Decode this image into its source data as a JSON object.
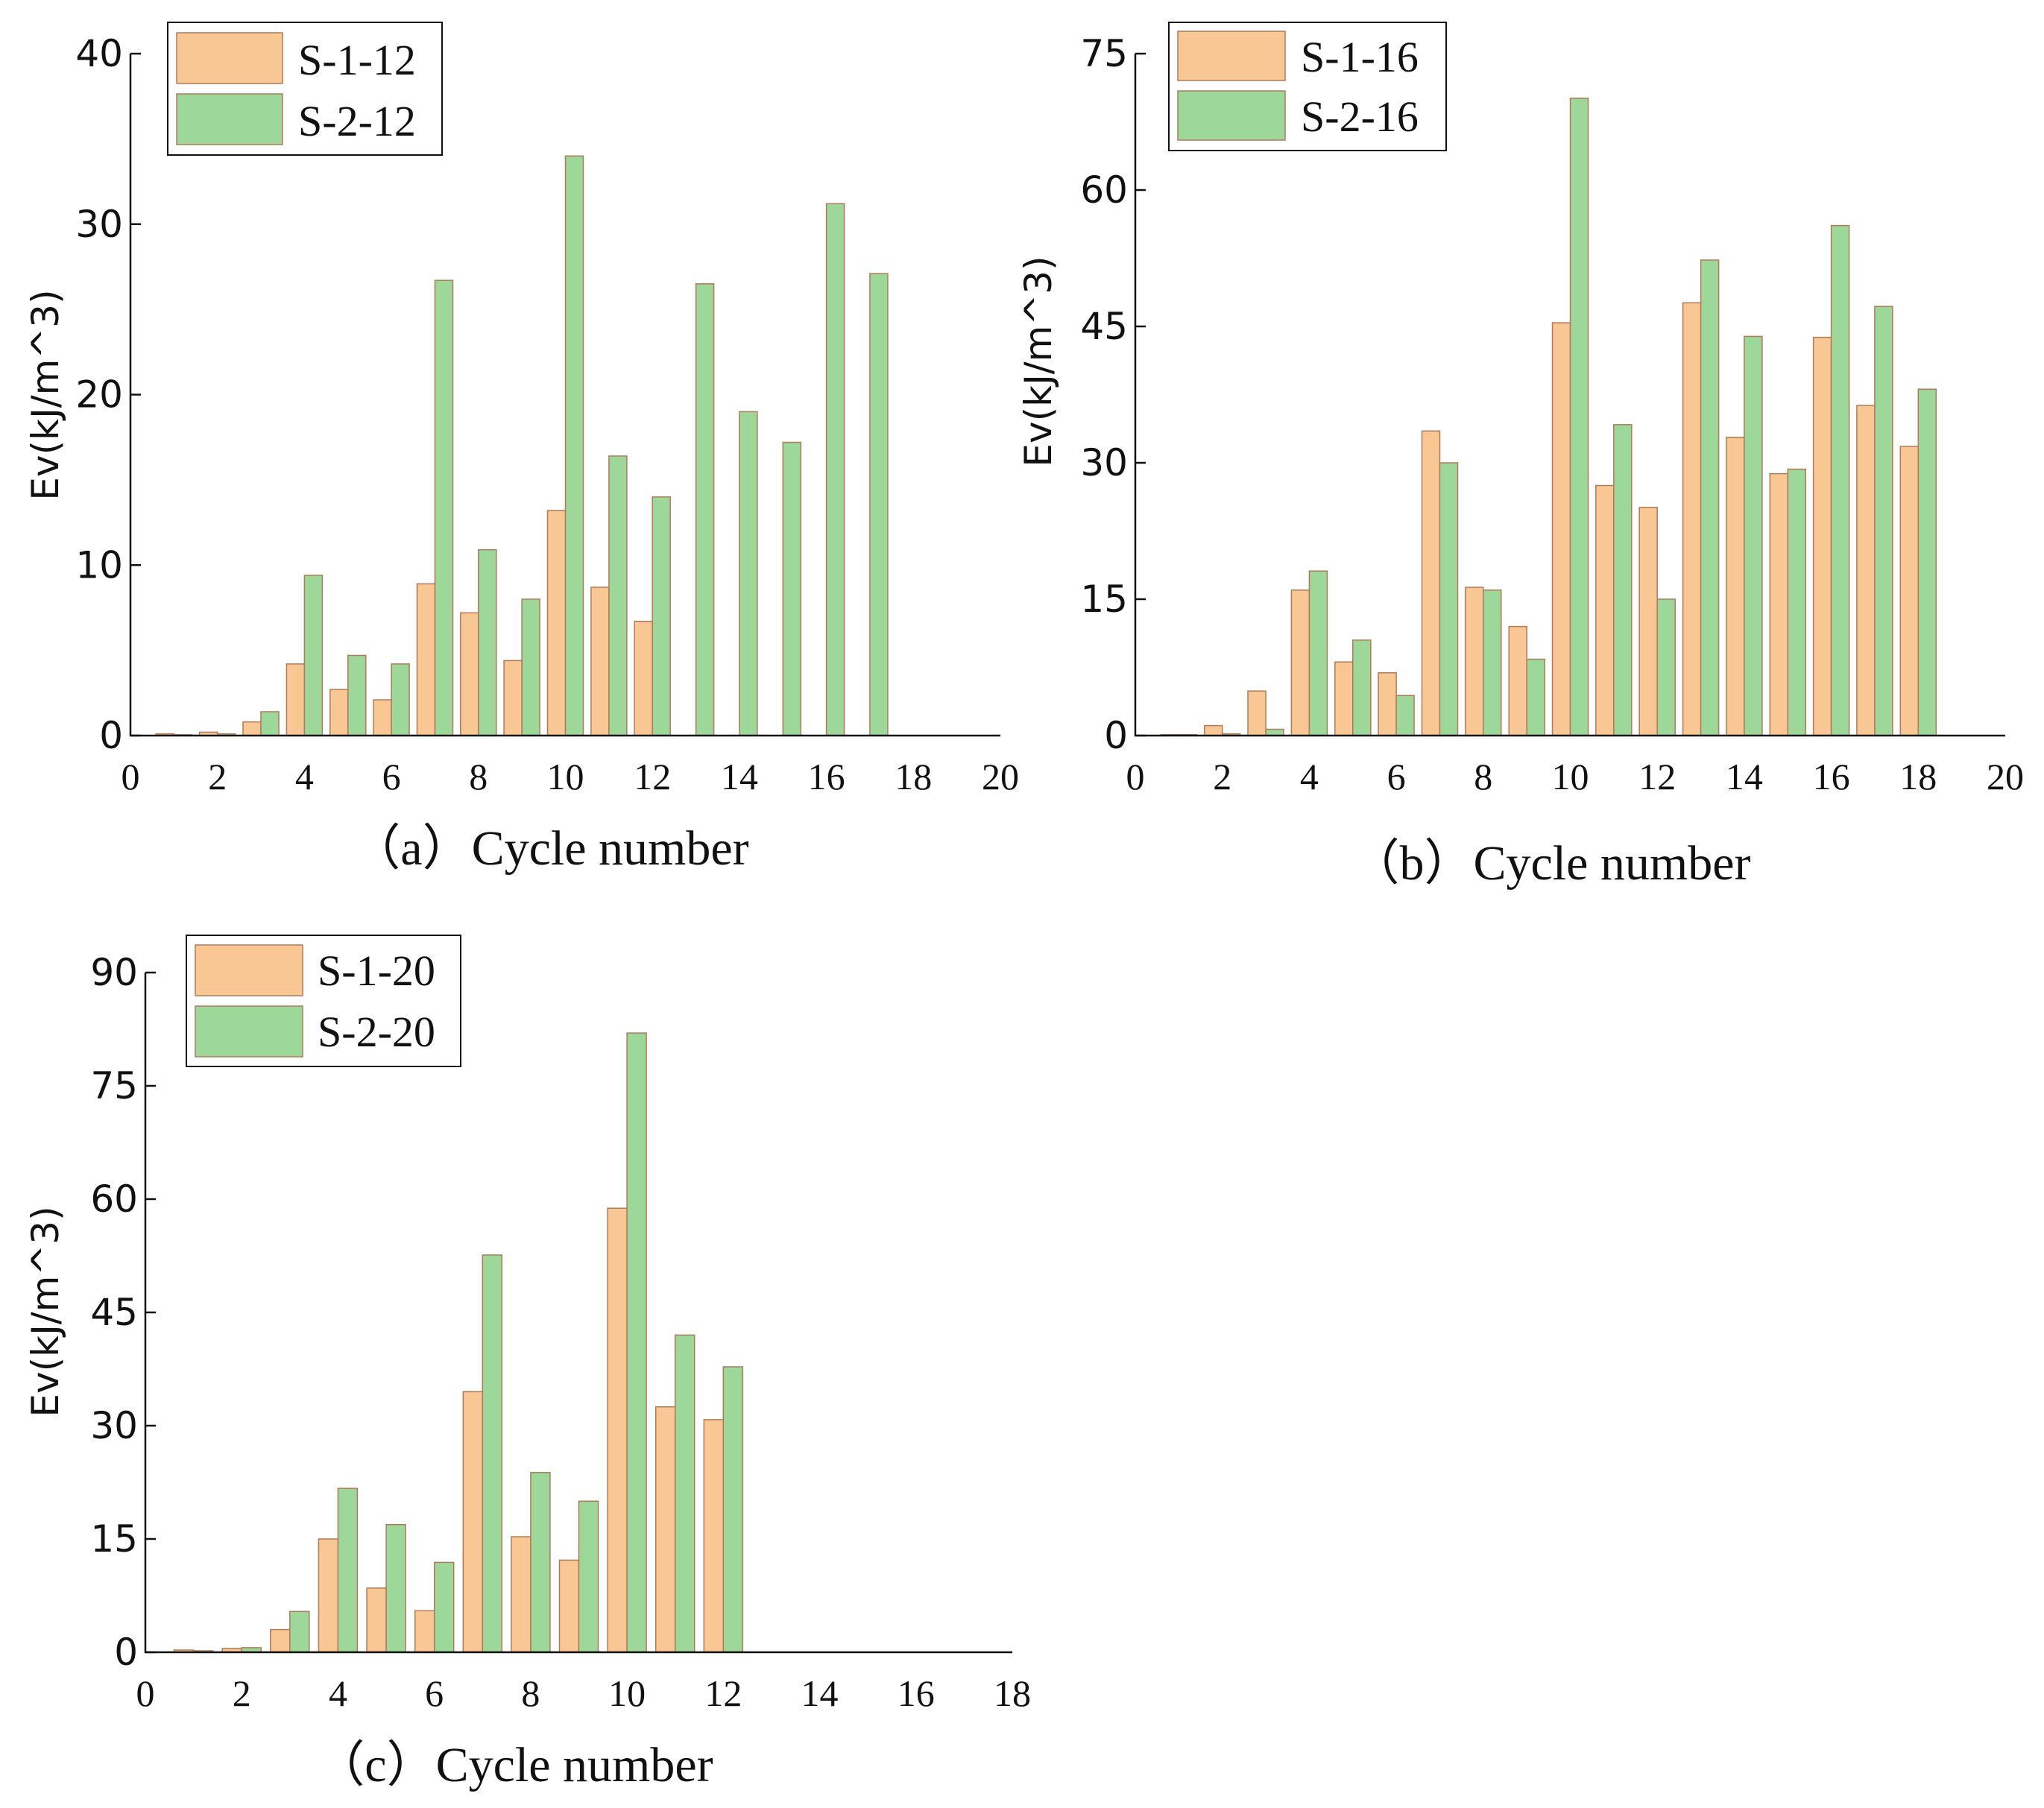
{
  "colors": {
    "series1": "#f9c794",
    "series2": "#9dd79a",
    "bar_edge": "#b07a5a"
  },
  "chart_data": [
    {
      "id": "a",
      "type": "bar",
      "xlabel": "（a）Cycle number",
      "ylabel": "Ev(kJ/m^3)",
      "xlim": [
        0,
        20
      ],
      "ylim": [
        0,
        40
      ],
      "xticks": [
        0,
        2,
        4,
        6,
        8,
        10,
        12,
        14,
        16,
        18,
        20
      ],
      "yticks": [
        0,
        10,
        20,
        30,
        40
      ],
      "legend_position": "top-left",
      "x": [
        1,
        2,
        3,
        4,
        5,
        6,
        7,
        8,
        9,
        10,
        11,
        12,
        13,
        14,
        15,
        16,
        17
      ],
      "series": [
        {
          "name": "S-1-12",
          "values": [
            0.1,
            0.2,
            0.8,
            4.2,
            2.7,
            2.1,
            8.9,
            7.2,
            4.4,
            13.2,
            8.7,
            6.7,
            null,
            null,
            null,
            null,
            null
          ]
        },
        {
          "name": "S-2-12",
          "values": [
            0.05,
            0.1,
            1.4,
            9.4,
            4.7,
            4.2,
            26.7,
            10.9,
            8.0,
            34.0,
            16.4,
            14.0,
            26.5,
            19.0,
            17.2,
            31.2,
            27.1
          ]
        }
      ]
    },
    {
      "id": "b",
      "type": "bar",
      "xlabel": "（b）Cycle number",
      "ylabel": "Ev(kJ/m^3)",
      "xlim": [
        0,
        20
      ],
      "ylim": [
        0,
        75
      ],
      "xticks": [
        0,
        2,
        4,
        6,
        8,
        10,
        12,
        14,
        16,
        18,
        20
      ],
      "yticks": [
        0,
        15,
        30,
        45,
        60,
        75
      ],
      "legend_position": "top-left",
      "x": [
        1,
        2,
        3,
        4,
        5,
        6,
        7,
        8,
        9,
        10,
        11,
        12,
        13,
        14,
        15,
        16,
        17,
        18
      ],
      "series": [
        {
          "name": "S-1-16",
          "values": [
            0.1,
            1.1,
            4.9,
            16.0,
            8.1,
            6.9,
            33.5,
            16.3,
            12.0,
            45.4,
            27.5,
            25.1,
            47.6,
            32.8,
            28.8,
            43.8,
            36.3,
            31.8
          ]
        },
        {
          "name": "S-2-16",
          "values": [
            0.1,
            0.2,
            0.7,
            18.1,
            10.5,
            4.4,
            30.0,
            16.0,
            8.4,
            70.1,
            34.2,
            15.0,
            52.3,
            43.9,
            29.3,
            56.1,
            47.2,
            38.1
          ]
        }
      ]
    },
    {
      "id": "c",
      "type": "bar",
      "xlabel": "（c）Cycle number",
      "ylabel": "Ev(kJ/m^3)",
      "xlim": [
        0,
        18
      ],
      "ylim": [
        0,
        90
      ],
      "xticks": [
        0,
        2,
        4,
        6,
        8,
        10,
        12,
        14,
        16,
        18
      ],
      "yticks": [
        0,
        15,
        30,
        45,
        60,
        75,
        90
      ],
      "legend_position": "top-left",
      "x": [
        1,
        2,
        3,
        4,
        5,
        6,
        7,
        8,
        9,
        10,
        11,
        12
      ],
      "series": [
        {
          "name": "S-1-20",
          "values": [
            0.3,
            0.5,
            3.0,
            15.0,
            8.5,
            5.5,
            34.5,
            15.3,
            12.2,
            58.8,
            32.5,
            30.8
          ]
        },
        {
          "name": "S-2-20",
          "values": [
            0.2,
            0.6,
            5.4,
            21.7,
            16.9,
            11.9,
            52.6,
            23.8,
            20.0,
            82.0,
            42.0,
            37.8
          ]
        }
      ]
    }
  ]
}
